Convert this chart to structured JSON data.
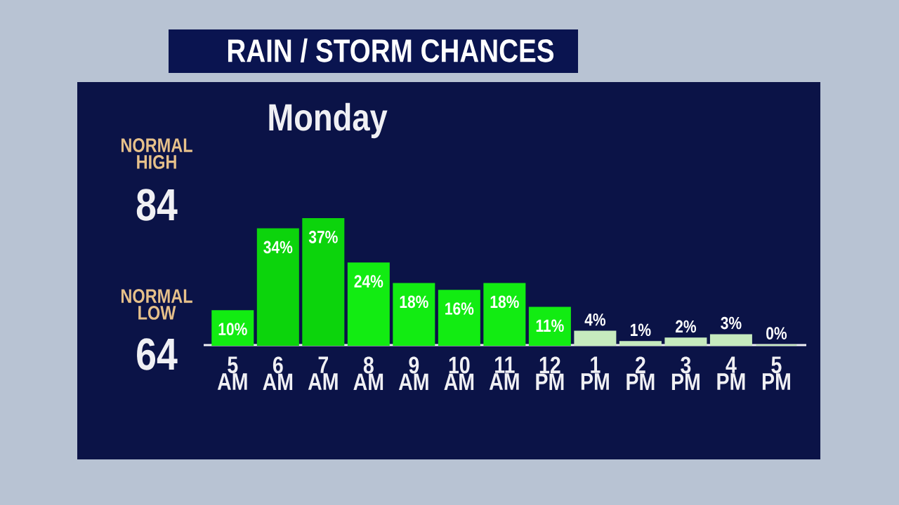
{
  "chart_data": {
    "type": "bar",
    "title": "RAIN / STORM CHANCES",
    "subtitle": "Monday",
    "annotations": [
      "NORMAL HIGH",
      "84",
      "NORMAL LOW",
      "64"
    ],
    "categories": [
      "5 AM",
      "6 AM",
      "7 AM",
      "8 AM",
      "9 AM",
      "10 AM",
      "11 AM",
      "12 PM",
      "1 PM",
      "2 PM",
      "3 PM",
      "4 PM",
      "5 PM"
    ],
    "values": [
      10,
      34,
      37,
      24,
      18,
      16,
      18,
      11,
      4,
      1,
      2,
      3,
      0
    ],
    "value_labels": [
      "10%",
      "34%",
      "37%",
      "24%",
      "18%",
      "16%",
      "18%",
      "11%",
      "4%",
      "1%",
      "2%",
      "3%",
      "0%"
    ],
    "colors": [
      "#12ec12",
      "#0cd40c",
      "#0cd40c",
      "#12ec12",
      "#12ec12",
      "#12ec12",
      "#12ec12",
      "#12ec12",
      "#c6eabe",
      "#c6eabe",
      "#c6eabe",
      "#c6eabe",
      "#c6eabe"
    ]
  }
}
